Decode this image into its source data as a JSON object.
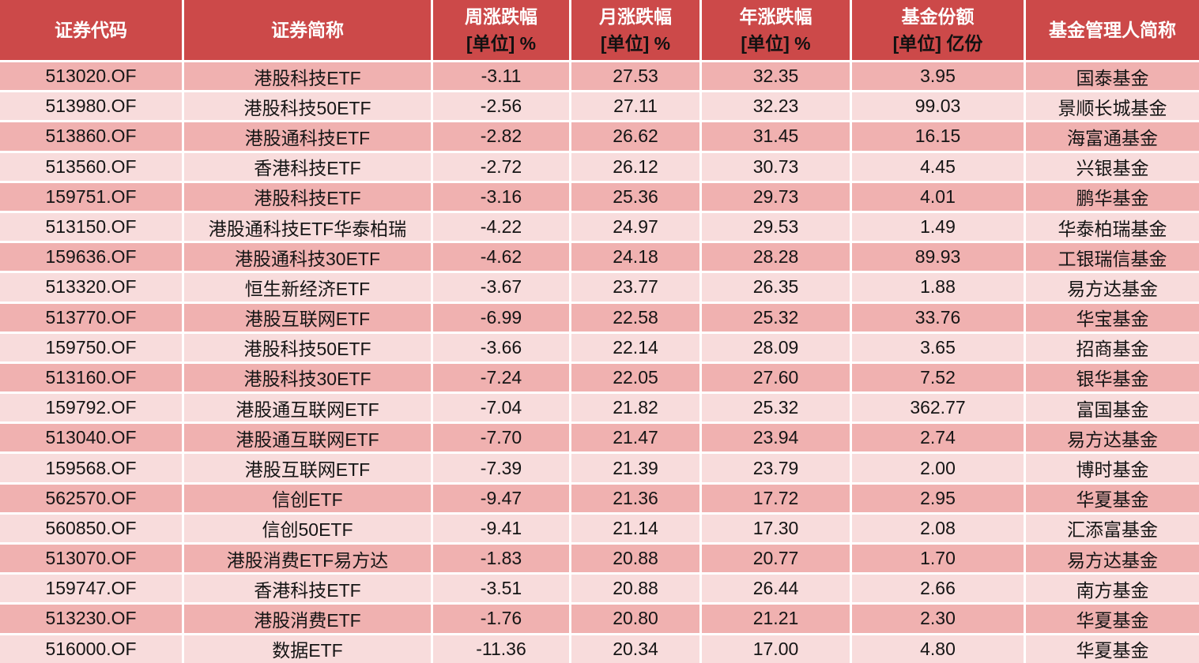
{
  "colors": {
    "header_bg": "#cc4949",
    "row_odd": "#f0b1b0",
    "row_even": "#f8dcdc",
    "grid_line": "#ffffff",
    "header_text": "#ffffff",
    "unit_text": "#111111",
    "cell_text": "#151515"
  },
  "chart_data": {
    "type": "table",
    "title": "",
    "columns": [
      {
        "key": "code",
        "label": "证券代码",
        "unit": ""
      },
      {
        "key": "name",
        "label": "证券简称",
        "unit": ""
      },
      {
        "key": "week",
        "label": "周涨跌幅",
        "unit": "[单位] %"
      },
      {
        "key": "month",
        "label": "月涨跌幅",
        "unit": "[单位] %"
      },
      {
        "key": "year",
        "label": "年涨跌幅",
        "unit": "[单位] %"
      },
      {
        "key": "shares",
        "label": "基金份额",
        "unit": "[单位] 亿份"
      },
      {
        "key": "manager",
        "label": "基金管理人简称",
        "unit": ""
      }
    ],
    "rows": [
      {
        "code": "513020.OF",
        "name": "港股科技ETF",
        "week": "-3.11",
        "month": "27.53",
        "year": "32.35",
        "shares": "3.95",
        "manager": "国泰基金"
      },
      {
        "code": "513980.OF",
        "name": "港股科技50ETF",
        "week": "-2.56",
        "month": "27.11",
        "year": "32.23",
        "shares": "99.03",
        "manager": "景顺长城基金"
      },
      {
        "code": "513860.OF",
        "name": "港股通科技ETF",
        "week": "-2.82",
        "month": "26.62",
        "year": "31.45",
        "shares": "16.15",
        "manager": "海富通基金"
      },
      {
        "code": "513560.OF",
        "name": "香港科技ETF",
        "week": "-2.72",
        "month": "26.12",
        "year": "30.73",
        "shares": "4.45",
        "manager": "兴银基金"
      },
      {
        "code": "159751.OF",
        "name": "港股科技ETF",
        "week": "-3.16",
        "month": "25.36",
        "year": "29.73",
        "shares": "4.01",
        "manager": "鹏华基金"
      },
      {
        "code": "513150.OF",
        "name": "港股通科技ETF华泰柏瑞",
        "week": "-4.22",
        "month": "24.97",
        "year": "29.53",
        "shares": "1.49",
        "manager": "华泰柏瑞基金"
      },
      {
        "code": "159636.OF",
        "name": "港股通科技30ETF",
        "week": "-4.62",
        "month": "24.18",
        "year": "28.28",
        "shares": "89.93",
        "manager": "工银瑞信基金"
      },
      {
        "code": "513320.OF",
        "name": "恒生新经济ETF",
        "week": "-3.67",
        "month": "23.77",
        "year": "26.35",
        "shares": "1.88",
        "manager": "易方达基金"
      },
      {
        "code": "513770.OF",
        "name": "港股互联网ETF",
        "week": "-6.99",
        "month": "22.58",
        "year": "25.32",
        "shares": "33.76",
        "manager": "华宝基金"
      },
      {
        "code": "159750.OF",
        "name": "港股科技50ETF",
        "week": "-3.66",
        "month": "22.14",
        "year": "28.09",
        "shares": "3.65",
        "manager": "招商基金"
      },
      {
        "code": "513160.OF",
        "name": "港股科技30ETF",
        "week": "-7.24",
        "month": "22.05",
        "year": "27.60",
        "shares": "7.52",
        "manager": "银华基金"
      },
      {
        "code": "159792.OF",
        "name": "港股通互联网ETF",
        "week": "-7.04",
        "month": "21.82",
        "year": "25.32",
        "shares": "362.77",
        "manager": "富国基金"
      },
      {
        "code": "513040.OF",
        "name": "港股通互联网ETF",
        "week": "-7.70",
        "month": "21.47",
        "year": "23.94",
        "shares": "2.74",
        "manager": "易方达基金"
      },
      {
        "code": "159568.OF",
        "name": "港股互联网ETF",
        "week": "-7.39",
        "month": "21.39",
        "year": "23.79",
        "shares": "2.00",
        "manager": "博时基金"
      },
      {
        "code": "562570.OF",
        "name": "信创ETF",
        "week": "-9.47",
        "month": "21.36",
        "year": "17.72",
        "shares": "2.95",
        "manager": "华夏基金"
      },
      {
        "code": "560850.OF",
        "name": "信创50ETF",
        "week": "-9.41",
        "month": "21.14",
        "year": "17.30",
        "shares": "2.08",
        "manager": "汇添富基金"
      },
      {
        "code": "513070.OF",
        "name": "港股消费ETF易方达",
        "week": "-1.83",
        "month": "20.88",
        "year": "20.77",
        "shares": "1.70",
        "manager": "易方达基金"
      },
      {
        "code": "159747.OF",
        "name": "香港科技ETF",
        "week": "-3.51",
        "month": "20.88",
        "year": "26.44",
        "shares": "2.66",
        "manager": "南方基金"
      },
      {
        "code": "513230.OF",
        "name": "港股消费ETF",
        "week": "-1.76",
        "month": "20.80",
        "year": "21.21",
        "shares": "2.30",
        "manager": "华夏基金"
      },
      {
        "code": "516000.OF",
        "name": "数据ETF",
        "week": "-11.36",
        "month": "20.34",
        "year": "17.00",
        "shares": "4.80",
        "manager": "华夏基金"
      }
    ]
  }
}
